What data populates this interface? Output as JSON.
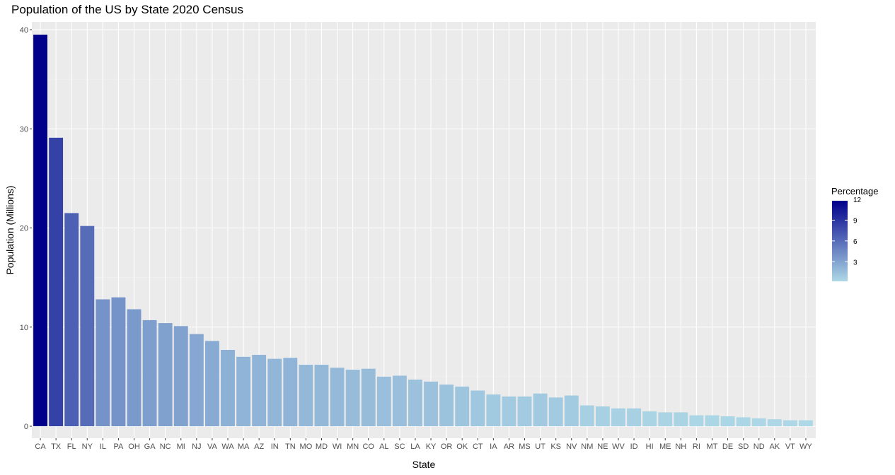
{
  "chart_data": {
    "type": "bar",
    "title": "Population of the US by State 2020 Census",
    "xlabel": "State",
    "ylabel": "Population (Millions)",
    "ylim": [
      0,
      40
    ],
    "yticks": [
      0,
      10,
      20,
      30,
      40
    ],
    "grid": true,
    "legend": {
      "title": "Percentage",
      "placement": "right",
      "type": "colorbar",
      "range": [
        0.17,
        11.8
      ],
      "ticks": [
        3,
        6,
        9,
        12
      ],
      "color_low": "#add8e6",
      "color_high": "#00008b"
    },
    "categories": [
      "CA",
      "TX",
      "FL",
      "NY",
      "IL",
      "PA",
      "OH",
      "GA",
      "NC",
      "MI",
      "NJ",
      "VA",
      "WA",
      "MA",
      "AZ",
      "IN",
      "TN",
      "MO",
      "MD",
      "WI",
      "MN",
      "CO",
      "AL",
      "SC",
      "LA",
      "KY",
      "OR",
      "OK",
      "CT",
      "IA",
      "AR",
      "MS",
      "UT",
      "KS",
      "NV",
      "NM",
      "NE",
      "WV",
      "ID",
      "HI",
      "ME",
      "NH",
      "RI",
      "MT",
      "DE",
      "SD",
      "ND",
      "AK",
      "VT",
      "WY"
    ],
    "values": [
      39.5,
      29.1,
      21.5,
      20.2,
      12.8,
      13.0,
      11.8,
      10.7,
      10.4,
      10.1,
      9.3,
      8.6,
      7.7,
      7.0,
      7.2,
      6.8,
      6.9,
      6.2,
      6.2,
      5.9,
      5.7,
      5.8,
      5.0,
      5.1,
      4.7,
      4.5,
      4.2,
      4.0,
      3.6,
      3.2,
      3.0,
      3.0,
      3.3,
      2.9,
      3.1,
      2.1,
      2.0,
      1.8,
      1.8,
      1.5,
      1.4,
      1.4,
      1.1,
      1.1,
      1.0,
      0.9,
      0.8,
      0.7,
      0.6,
      0.6
    ],
    "percentages": [
      11.8,
      8.3,
      6.6,
      6.0,
      3.9,
      3.9,
      3.5,
      3.3,
      3.2,
      3.1,
      2.8,
      2.6,
      2.3,
      2.1,
      2.1,
      2.0,
      2.1,
      1.9,
      1.9,
      1.8,
      1.7,
      1.7,
      1.5,
      1.5,
      1.4,
      1.4,
      1.3,
      1.2,
      1.1,
      1.0,
      0.9,
      0.9,
      1.0,
      0.9,
      0.9,
      0.6,
      0.6,
      0.5,
      0.6,
      0.4,
      0.4,
      0.4,
      0.3,
      0.3,
      0.3,
      0.3,
      0.2,
      0.2,
      0.2,
      0.17
    ]
  }
}
